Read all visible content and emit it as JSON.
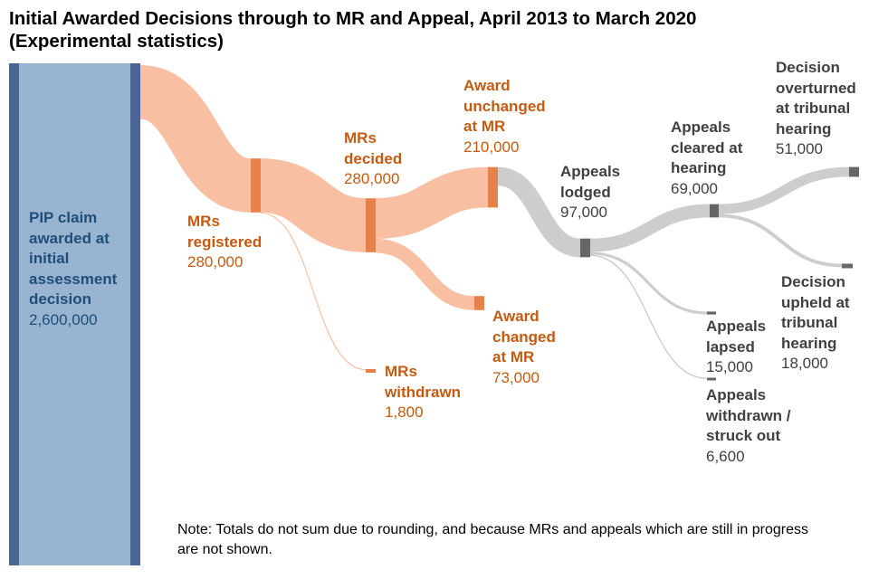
{
  "title": "Initial Awarded Decisions through to MR and Appeal, April 2013 to March 2020",
  "subtitle": "(Experimental statistics)",
  "note": "Note: Totals do not sum due to rounding, and because MRs and appeals which are still in progress are not shown.",
  "colors": {
    "claim_fill": "#99b4d1",
    "claim_edge": "#4a6593",
    "mr_flow": "#f8bfa2",
    "mr_node": "#e8804a",
    "appeal_flow": "#cdcdcd",
    "appeal_node": "#666666",
    "blue_text": "#1f4e79",
    "orange_text": "#c55a11",
    "grey_text": "#404040"
  },
  "chart_data": {
    "type": "sankey",
    "title": "Initial Awarded Decisions through to MR and Appeal, April 2013 to March 2020",
    "subtitle": "(Experimental statistics)",
    "units": "claims",
    "nodes": [
      {
        "id": "claims",
        "name": "PIP claim awarded at initial assessment decision",
        "value": 2600000,
        "value_label": "2,600,000"
      },
      {
        "id": "mr_registered",
        "name": "MRs registered",
        "value": 280000,
        "value_label": "280,000"
      },
      {
        "id": "mr_decided",
        "name": "MRs decided",
        "value": 280000,
        "value_label": "280,000"
      },
      {
        "id": "mr_withdrawn",
        "name": "MRs withdrawn",
        "value": 1800,
        "value_label": "1,800"
      },
      {
        "id": "award_unchanged",
        "name": "Award unchanged at MR",
        "value": 210000,
        "value_label": "210,000"
      },
      {
        "id": "award_changed",
        "name": "Award changed at MR",
        "value": 73000,
        "value_label": "73,000"
      },
      {
        "id": "appeals_lodged",
        "name": "Appeals lodged",
        "value": 97000,
        "value_label": "97,000"
      },
      {
        "id": "appeals_cleared",
        "name": "Appeals cleared at hearing",
        "value": 69000,
        "value_label": "69,000"
      },
      {
        "id": "appeals_lapsed",
        "name": "Appeals lapsed",
        "value": 15000,
        "value_label": "15,000"
      },
      {
        "id": "appeals_withdrawn",
        "name": "Appeals withdrawn / struck out",
        "value": 6600,
        "value_label": "6,600"
      },
      {
        "id": "overturned",
        "name": "Decision overturned at tribunal hearing",
        "value": 51000,
        "value_label": "51,000"
      },
      {
        "id": "upheld",
        "name": "Decision upheld at tribunal hearing",
        "value": 18000,
        "value_label": "18,000"
      }
    ],
    "links": [
      {
        "source": "claims",
        "target": "mr_registered",
        "value": 280000
      },
      {
        "source": "mr_registered",
        "target": "mr_decided",
        "value": 280000
      },
      {
        "source": "mr_registered",
        "target": "mr_withdrawn",
        "value": 1800
      },
      {
        "source": "mr_decided",
        "target": "award_unchanged",
        "value": 210000
      },
      {
        "source": "mr_decided",
        "target": "award_changed",
        "value": 73000
      },
      {
        "source": "award_unchanged",
        "target": "appeals_lodged",
        "value": 97000
      },
      {
        "source": "appeals_lodged",
        "target": "appeals_cleared",
        "value": 69000
      },
      {
        "source": "appeals_lodged",
        "target": "appeals_lapsed",
        "value": 15000
      },
      {
        "source": "appeals_lodged",
        "target": "appeals_withdrawn",
        "value": 6600
      },
      {
        "source": "appeals_cleared",
        "target": "overturned",
        "value": 51000
      },
      {
        "source": "appeals_cleared",
        "target": "upheld",
        "value": 18000
      }
    ],
    "labels": {
      "claims": {
        "name": "PIP claim awarded at initial assessment decision",
        "value": "2,600,000"
      },
      "mr_registered": {
        "name": "MRs registered",
        "value": "280,000"
      },
      "mr_decided": {
        "name": "MRs decided",
        "value": "280,000"
      },
      "mr_withdrawn": {
        "name": "MRs withdrawn",
        "value": "1,800"
      },
      "award_unchanged": {
        "name": "Award unchanged at MR",
        "value": "210,000"
      },
      "award_changed": {
        "name": "Award changed at MR",
        "value": "73,000"
      },
      "appeals_lodged": {
        "name": "Appeals lodged",
        "value": "97,000"
      },
      "appeals_cleared": {
        "name": "Appeals cleared at hearing",
        "value": "69,000"
      },
      "appeals_lapsed": {
        "name": "Appeals lapsed",
        "value": "15,000"
      },
      "appeals_withdrawn": {
        "name": "Appeals withdrawn / struck out",
        "value": "6,600"
      },
      "overturned": {
        "name": "Decision overturned at tribunal hearing",
        "value": "51,000"
      },
      "upheld": {
        "name": "Decision upheld at tribunal hearing",
        "value": "18,000"
      }
    }
  }
}
